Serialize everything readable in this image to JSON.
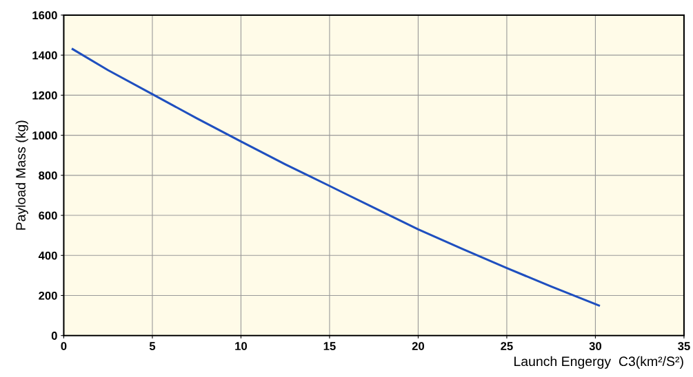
{
  "chart_data": {
    "type": "line",
    "xlabel": "Launch Engergy  C3(km²/S²)",
    "ylabel": "Payload Mass (kg)",
    "x": [
      0.5,
      2.5,
      5,
      7.5,
      10,
      12.5,
      15,
      17.5,
      20,
      22.5,
      25,
      27.5,
      30.2
    ],
    "series": [
      {
        "color": "#1f4fbf",
        "values": [
          1430,
          1325,
          1205,
          1085,
          969,
          855,
          747,
          638,
          530,
          432,
          337,
          245,
          150
        ]
      }
    ],
    "xlim": [
      0,
      35
    ],
    "xticks": [
      0,
      5,
      10,
      15,
      20,
      25,
      30,
      35
    ],
    "ylim": [
      0,
      1600
    ],
    "yticks": [
      0,
      200,
      400,
      600,
      800,
      1000,
      1200,
      1400,
      1600
    ],
    "grid": true,
    "marker": "none",
    "line_style": "solid"
  }
}
